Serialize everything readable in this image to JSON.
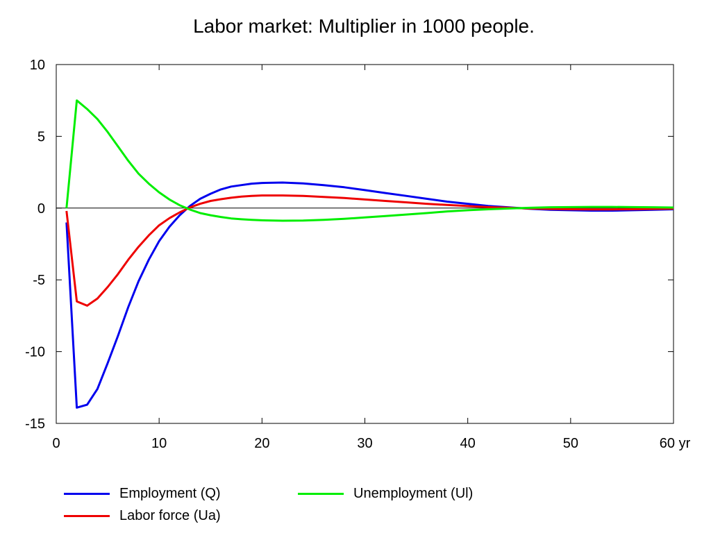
{
  "chart_data": {
    "type": "line",
    "title": "Labor market: Multiplier in 1000 people.",
    "xlabel": "",
    "ylabel": "",
    "x_unit_label": "yr",
    "xlim": [
      0,
      60
    ],
    "ylim": [
      -15,
      10
    ],
    "x_ticks": [
      0,
      10,
      20,
      30,
      40,
      50,
      60
    ],
    "x_tick_labels": [
      "0",
      "10",
      "20",
      "30",
      "40",
      "50",
      "60 yr"
    ],
    "y_ticks": [
      10,
      5,
      0,
      -5,
      -10,
      -15
    ],
    "y_tick_labels": [
      "10",
      "5",
      "0",
      "-5",
      "-10",
      "-15"
    ],
    "grid": false,
    "zero_line": true,
    "legend_position": "bottom",
    "series": [
      {
        "name": "Employment (Q)",
        "color": "#0000ee",
        "x": [
          1,
          2,
          3,
          4,
          5,
          6,
          7,
          8,
          9,
          10,
          11,
          12,
          13,
          14,
          15,
          16,
          17,
          18,
          19,
          20,
          22,
          24,
          26,
          28,
          30,
          32,
          34,
          36,
          38,
          40,
          42,
          44,
          46,
          48,
          50,
          52,
          54,
          56,
          58,
          60
        ],
        "y": [
          -1.0,
          -13.9,
          -13.7,
          -12.6,
          -10.8,
          -8.9,
          -6.9,
          -5.1,
          -3.6,
          -2.3,
          -1.3,
          -0.5,
          0.15,
          0.65,
          1.0,
          1.3,
          1.5,
          1.6,
          1.7,
          1.75,
          1.78,
          1.72,
          1.6,
          1.45,
          1.25,
          1.05,
          0.85,
          0.65,
          0.45,
          0.3,
          0.15,
          0.05,
          -0.05,
          -0.12,
          -0.15,
          -0.18,
          -0.18,
          -0.15,
          -0.12,
          -0.08
        ]
      },
      {
        "name": "Labor force (Ua)",
        "color": "#ee0000",
        "x": [
          1,
          2,
          3,
          4,
          5,
          6,
          7,
          8,
          9,
          10,
          11,
          12,
          13,
          14,
          15,
          16,
          17,
          18,
          19,
          20,
          22,
          24,
          26,
          28,
          30,
          32,
          34,
          36,
          38,
          40,
          42,
          44,
          46,
          48,
          50,
          52,
          54,
          56,
          58,
          60
        ],
        "y": [
          -0.2,
          -6.5,
          -6.8,
          -6.3,
          -5.5,
          -4.6,
          -3.6,
          -2.7,
          -1.9,
          -1.2,
          -0.7,
          -0.3,
          0.05,
          0.3,
          0.5,
          0.62,
          0.72,
          0.8,
          0.85,
          0.88,
          0.88,
          0.85,
          0.78,
          0.7,
          0.6,
          0.5,
          0.4,
          0.3,
          0.22,
          0.14,
          0.07,
          0.02,
          -0.03,
          -0.06,
          -0.08,
          -0.09,
          -0.09,
          -0.08,
          -0.06,
          -0.04
        ]
      },
      {
        "name": "Unemployment (Ul)",
        "color": "#00ee00",
        "x": [
          1,
          2,
          3,
          4,
          5,
          6,
          7,
          8,
          9,
          10,
          11,
          12,
          13,
          14,
          15,
          16,
          17,
          18,
          19,
          20,
          22,
          24,
          26,
          28,
          30,
          32,
          34,
          36,
          38,
          40,
          42,
          44,
          46,
          48,
          50,
          52,
          54,
          56,
          58,
          60
        ],
        "y": [
          0.0,
          7.5,
          6.9,
          6.2,
          5.3,
          4.3,
          3.3,
          2.4,
          1.7,
          1.1,
          0.6,
          0.2,
          -0.1,
          -0.35,
          -0.5,
          -0.62,
          -0.72,
          -0.78,
          -0.82,
          -0.85,
          -0.88,
          -0.87,
          -0.82,
          -0.75,
          -0.65,
          -0.55,
          -0.45,
          -0.35,
          -0.23,
          -0.15,
          -0.08,
          -0.03,
          0.02,
          0.06,
          0.07,
          0.08,
          0.08,
          0.07,
          0.06,
          0.04
        ]
      }
    ]
  }
}
